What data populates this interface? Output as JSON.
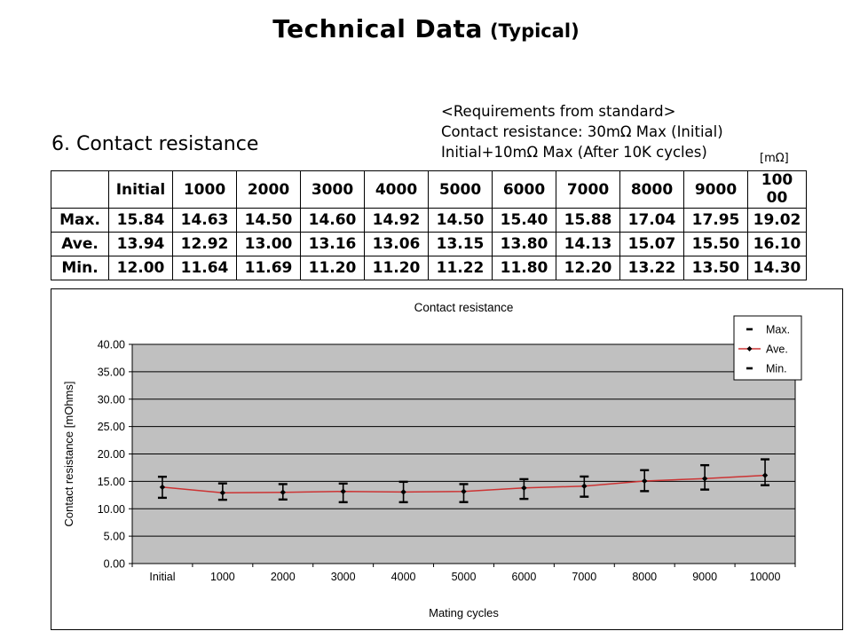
{
  "page_title": {
    "main": "Technical Data",
    "suffix": "(Typical)"
  },
  "section": {
    "heading": "6. Contact resistance"
  },
  "requirements": {
    "line1": "<Requirements from standard>",
    "line2": "Contact resistance: 30mΩ Max (Initial)",
    "line3": "Initial+10mΩ Max (After 10K cycles)",
    "unit_note": "[mΩ]"
  },
  "table": {
    "columns": [
      "",
      "Initial",
      "1000",
      "2000",
      "3000",
      "4000",
      "5000",
      "6000",
      "7000",
      "8000",
      "9000",
      "10000"
    ],
    "rows": [
      {
        "label": "Max.",
        "values": [
          "15.84",
          "14.63",
          "14.50",
          "14.60",
          "14.92",
          "14.50",
          "15.40",
          "15.88",
          "17.04",
          "17.95",
          "19.02"
        ]
      },
      {
        "label": "Ave.",
        "values": [
          "13.94",
          "12.92",
          "13.00",
          "13.16",
          "13.06",
          "13.15",
          "13.80",
          "14.13",
          "15.07",
          "15.50",
          "16.10"
        ]
      },
      {
        "label": "Min.",
        "values": [
          "12.00",
          "11.64",
          "11.69",
          "11.20",
          "11.20",
          "11.22",
          "11.80",
          "12.20",
          "13.22",
          "13.50",
          "14.30"
        ]
      }
    ]
  },
  "chart_data": {
    "type": "line",
    "title": "Contact resistance",
    "xlabel": "Mating cycles",
    "ylabel": "Contact resistance [mOhms]",
    "categories": [
      "Initial",
      "1000",
      "2000",
      "3000",
      "4000",
      "5000",
      "6000",
      "7000",
      "8000",
      "9000",
      "10000"
    ],
    "series": [
      {
        "name": "Max.",
        "legend_marker": "dash",
        "values": [
          15.84,
          14.63,
          14.5,
          14.6,
          14.92,
          14.5,
          15.4,
          15.88,
          17.04,
          17.95,
          19.02
        ]
      },
      {
        "name": "Ave.",
        "legend_marker": "line-dot",
        "values": [
          13.94,
          12.92,
          13.0,
          13.16,
          13.06,
          13.15,
          13.8,
          14.13,
          15.07,
          15.5,
          16.1
        ]
      },
      {
        "name": "Min.",
        "legend_marker": "dash",
        "values": [
          12.0,
          11.64,
          11.69,
          11.2,
          11.2,
          11.22,
          11.8,
          12.2,
          13.22,
          13.5,
          14.3
        ]
      }
    ],
    "ylim": [
      0,
      40
    ],
    "ytick_step": 5,
    "ytick_labels": [
      "0.00",
      "5.00",
      "10.00",
      "15.00",
      "20.00",
      "25.00",
      "30.00",
      "35.00",
      "40.00"
    ],
    "grid": true,
    "legend_position": "top-right",
    "colors": {
      "plot_bg": "#c0c0c0",
      "line": "#cc3333",
      "marker": "#000000",
      "error_bar": "#000000",
      "legend_bg": "#ffffff"
    }
  }
}
